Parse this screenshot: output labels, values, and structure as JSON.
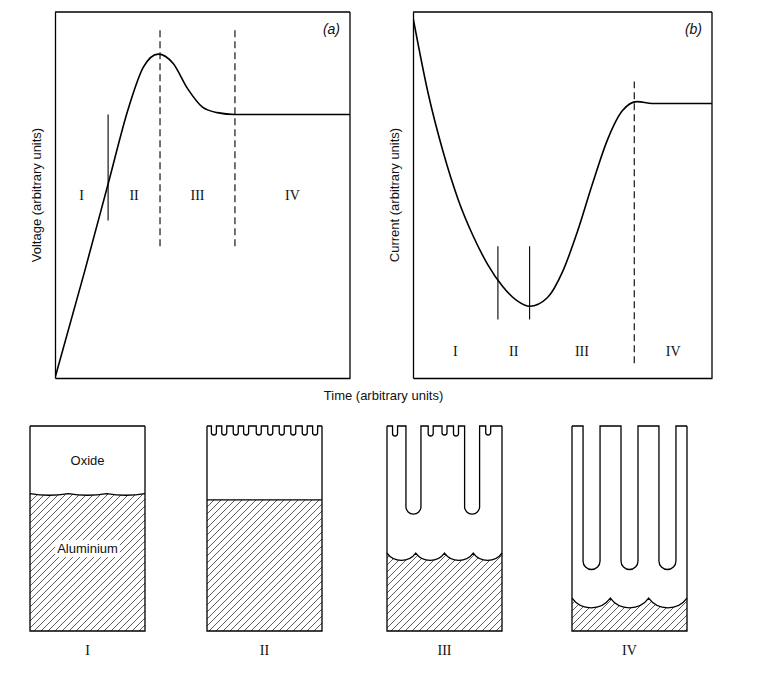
{
  "chart_data": [
    {
      "type": "line",
      "panel_label": "(a)",
      "ylabel": "Voltage (arbitrary units)",
      "x": [
        0,
        1,
        1.8,
        2.5,
        3.0,
        3.5,
        4.0,
        4.5,
        5.0,
        5.5,
        6.1,
        7,
        8,
        9,
        10
      ],
      "values": [
        0,
        2.9,
        5.3,
        7.4,
        8.5,
        8.85,
        8.6,
        7.9,
        7.4,
        7.25,
        7.2,
        7.2,
        7.2,
        7.2,
        7.2
      ],
      "xlim": [
        0,
        10
      ],
      "ylim": [
        0,
        10
      ],
      "tick_labels": false,
      "color": "#000000",
      "boundaries": [
        {
          "x": 1.8,
          "line_style": "solid"
        },
        {
          "x": 3.56,
          "line_style": "dashed"
        },
        {
          "x": 6.1,
          "line_style": "dashed"
        }
      ],
      "regions": [
        "I",
        "II",
        "III",
        "IV"
      ]
    },
    {
      "type": "line",
      "panel_label": "(b)",
      "ylabel": "Current (arbitrary units)",
      "x": [
        0,
        0.5,
        1,
        1.5,
        2,
        2.5,
        3,
        3.5,
        3.9,
        4.5,
        5,
        5.5,
        6,
        6.5,
        7,
        7.5,
        8,
        9,
        10
      ],
      "values": [
        9.85,
        7.8,
        6.2,
        4.9,
        3.9,
        3.1,
        2.5,
        2.1,
        1.96,
        2.2,
        2.9,
        4.0,
        5.3,
        6.5,
        7.3,
        7.55,
        7.5,
        7.5,
        7.5
      ],
      "xlim": [
        0,
        10
      ],
      "ylim": [
        0,
        10
      ],
      "tick_labels": false,
      "color": "#000000",
      "boundaries": [
        {
          "x": 2.84,
          "line_style": "solid"
        },
        {
          "x": 3.9,
          "line_style": "solid"
        },
        {
          "x": 7.4,
          "line_style": "dashed"
        }
      ],
      "regions": [
        "I",
        "II",
        "III",
        "IV"
      ]
    }
  ],
  "xlabel": "Time (arbitrary units)",
  "diagram": {
    "panels": [
      {
        "label": "I",
        "oxide_label": "Oxide",
        "metal_label": "Aluminium"
      },
      {
        "label": "II"
      },
      {
        "label": "III"
      },
      {
        "label": "IV"
      }
    ]
  }
}
